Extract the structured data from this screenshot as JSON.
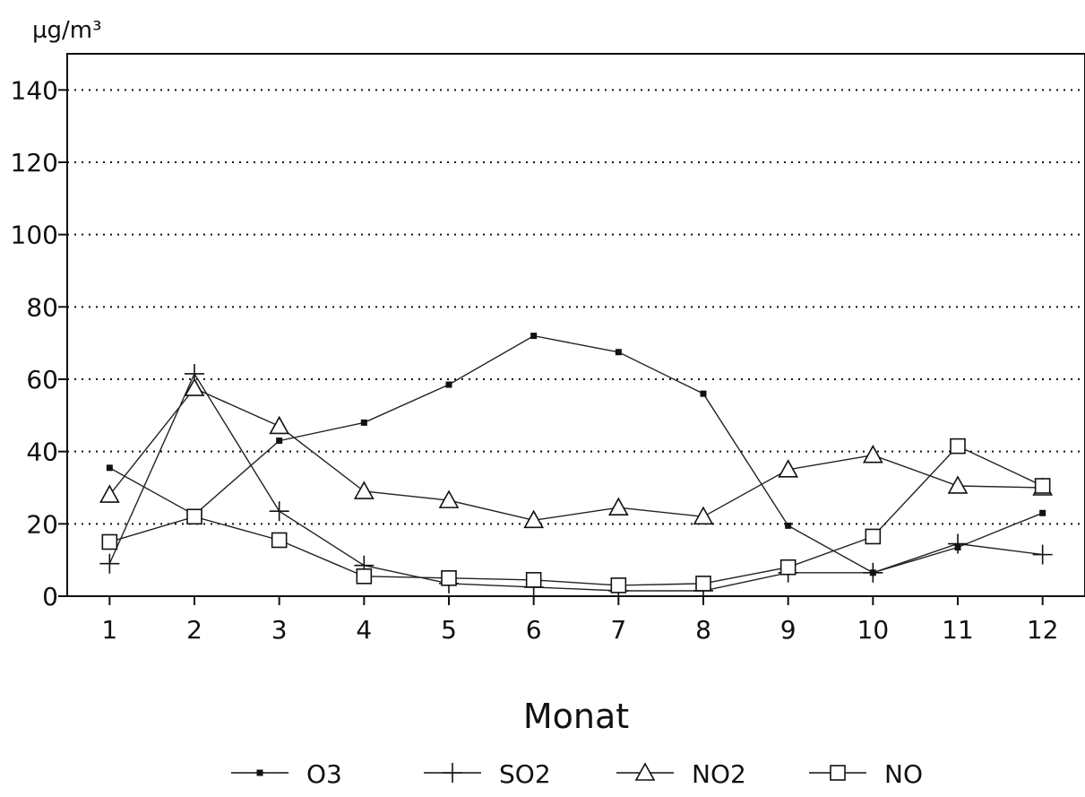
{
  "chart_data": {
    "type": "line",
    "title": "",
    "xlabel": "Monat",
    "ylabel": "µg/m³",
    "x": [
      1,
      2,
      3,
      4,
      5,
      6,
      7,
      8,
      9,
      10,
      11,
      12
    ],
    "x_tick_labels": [
      "1",
      "2",
      "3",
      "4",
      "5",
      "6",
      "7",
      "8",
      "9",
      "10",
      "11",
      "12"
    ],
    "y_ticks": [
      0,
      20,
      40,
      60,
      80,
      100,
      120,
      140
    ],
    "y_tick_labels": [
      "0",
      "20",
      "40",
      "60",
      "80",
      "100",
      "120",
      "140"
    ],
    "xlim": [
      0.5,
      12.5
    ],
    "ylim": [
      0,
      150
    ],
    "grid": "horizontal dotted",
    "legend_position": "bottom",
    "series": [
      {
        "name": "O3",
        "marker": "filled-square",
        "values": [
          35.5,
          22.5,
          43,
          48,
          58.5,
          72,
          67.5,
          56,
          19.5,
          6.5,
          13.5,
          23
        ]
      },
      {
        "name": "SO2",
        "marker": "plus",
        "values": [
          9,
          61.5,
          23.5,
          8.5,
          3.5,
          2.5,
          1.5,
          1.5,
          6.5,
          6.5,
          14.5,
          11.5
        ]
      },
      {
        "name": "NO2",
        "marker": "triangle",
        "values": [
          28,
          57.5,
          47,
          29,
          26.5,
          21,
          24.5,
          22,
          35,
          39,
          30.5,
          30
        ]
      },
      {
        "name": "NO",
        "marker": "open-square",
        "values": [
          15,
          22,
          15.5,
          5.5,
          5,
          4.5,
          3,
          3.5,
          8,
          16.5,
          41.5,
          30.5
        ]
      }
    ]
  }
}
